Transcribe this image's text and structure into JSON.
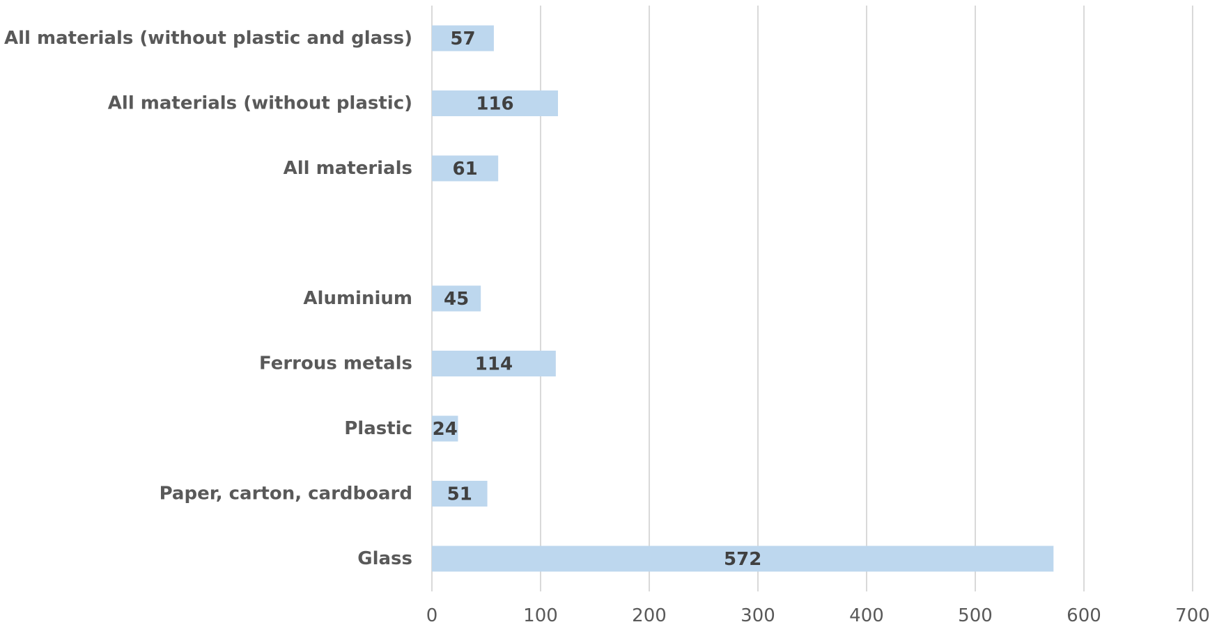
{
  "chart_data": {
    "type": "bar",
    "orientation": "horizontal",
    "categories": [
      "All materials (without plastic and glass)",
      "All materials (without plastic)",
      "All materials",
      "",
      "Aluminium",
      "Ferrous metals",
      "Plastic",
      "Paper, carton, cardboard",
      "Glass"
    ],
    "values": [
      57,
      116,
      61,
      null,
      45,
      114,
      24,
      51,
      572
    ],
    "data_labels": [
      "57",
      "116",
      "61",
      "",
      "45",
      "114",
      "24",
      "51",
      "572"
    ],
    "xlim": [
      0,
      700
    ],
    "x_ticks": [
      0,
      100,
      200,
      300,
      400,
      500,
      600,
      700
    ],
    "x_tick_labels": [
      "0",
      "100",
      "200",
      "300",
      "400",
      "500",
      "600",
      "700"
    ],
    "grid": true,
    "legend": "none",
    "colors": {
      "bar": "#bdd7ee",
      "text": "#595959",
      "data_label": "#404040",
      "grid": "#d9d9d9"
    }
  }
}
